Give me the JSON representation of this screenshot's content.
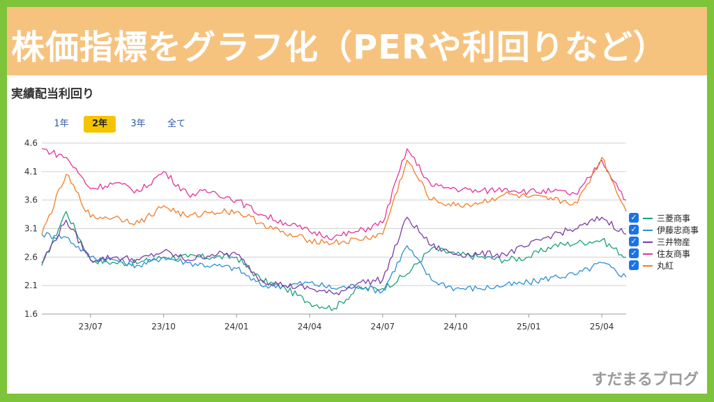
{
  "banner": {
    "title": "株価指標をグラフ化（PERや利回りなど）"
  },
  "watermark": "すだまるブログ",
  "colors": {
    "frame": "#7dc43a",
    "banner": "#f6c37f",
    "active_range": "#f5c400",
    "checkbox": "#1a73e8"
  },
  "range_buttons": [
    {
      "label": "1年",
      "active": false
    },
    {
      "label": "2年",
      "active": true
    },
    {
      "label": "3年",
      "active": false
    },
    {
      "label": "全て",
      "active": false
    }
  ],
  "chart_data": {
    "type": "line",
    "title": "実績配当利回り",
    "xlabel": "",
    "ylabel": "",
    "ylim": [
      1.6,
      4.6
    ],
    "yticks": [
      "4.6",
      "4.1",
      "3.6",
      "3.1",
      "2.6",
      "2.1",
      "1.6"
    ],
    "xticks": [
      "23/07",
      "23/10",
      "24/01",
      "24/04",
      "24/07",
      "24/10",
      "25/01",
      "25/04"
    ],
    "grid": true,
    "legend_position": "right",
    "x": [
      "23/05",
      "23/06",
      "23/07",
      "23/08",
      "23/09",
      "23/10",
      "23/11",
      "23/12",
      "24/01",
      "24/02",
      "24/03",
      "24/04",
      "24/05",
      "24/06",
      "24/07",
      "24/08",
      "24/09",
      "24/10",
      "24/11",
      "24/12",
      "25/01",
      "25/02",
      "25/03",
      "25/04",
      "25/05"
    ],
    "series": [
      {
        "name": "三菱商事",
        "color": "#1aa07a",
        "values": [
          2.45,
          3.4,
          2.55,
          2.5,
          2.5,
          2.6,
          2.6,
          2.6,
          2.6,
          2.2,
          2.05,
          1.8,
          1.7,
          2.05,
          2.05,
          2.3,
          2.75,
          2.65,
          2.6,
          2.55,
          2.6,
          2.8,
          2.85,
          2.9,
          2.6
        ]
      },
      {
        "name": "伊藤忠商事",
        "color": "#2a8fd6",
        "values": [
          3.0,
          2.95,
          2.6,
          2.55,
          2.45,
          2.6,
          2.5,
          2.45,
          2.4,
          2.1,
          2.1,
          2.15,
          2.05,
          2.1,
          2.0,
          2.8,
          2.2,
          2.05,
          2.05,
          2.1,
          2.15,
          2.25,
          2.3,
          2.5,
          2.25
        ]
      },
      {
        "name": "三井物産",
        "color": "#7b3aa8",
        "values": [
          2.5,
          3.25,
          2.55,
          2.6,
          2.55,
          2.7,
          2.55,
          2.65,
          2.65,
          2.2,
          2.1,
          2.05,
          1.95,
          2.15,
          2.2,
          3.3,
          2.8,
          2.65,
          2.65,
          2.65,
          2.8,
          3.0,
          3.1,
          3.3,
          3.0
        ]
      },
      {
        "name": "住友商事",
        "color": "#e0359a",
        "values": [
          4.5,
          4.35,
          3.8,
          3.9,
          3.75,
          4.1,
          3.7,
          3.75,
          3.6,
          3.35,
          3.2,
          3.05,
          2.95,
          3.05,
          3.2,
          4.5,
          3.85,
          3.8,
          3.75,
          3.8,
          3.75,
          3.75,
          3.7,
          4.3,
          3.6
        ]
      },
      {
        "name": "丸紅",
        "color": "#f07d26",
        "values": [
          3.0,
          4.05,
          3.3,
          3.3,
          3.2,
          3.5,
          3.3,
          3.4,
          3.4,
          3.2,
          3.0,
          2.9,
          2.85,
          2.9,
          3.0,
          4.3,
          3.6,
          3.5,
          3.55,
          3.7,
          3.65,
          3.6,
          3.55,
          4.35,
          3.4
        ]
      }
    ]
  }
}
